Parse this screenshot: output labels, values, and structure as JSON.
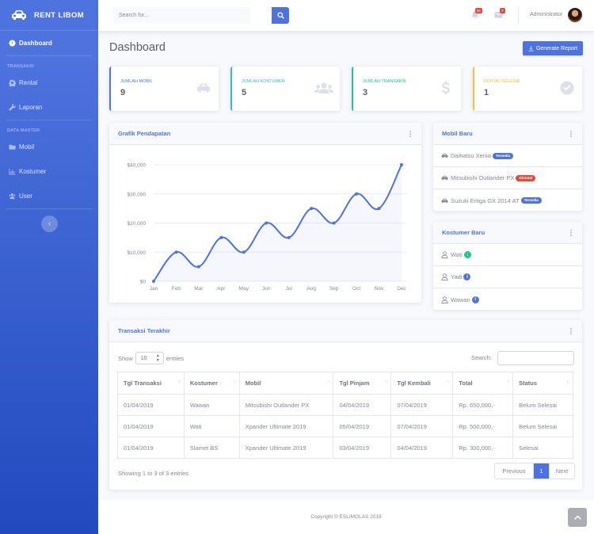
{
  "brand": {
    "name": "RENT LIBOM",
    "icon": "car-icon"
  },
  "sidebar": {
    "dashboard": "Dashboard",
    "heading_transaksi": "TRANSAKSI",
    "rental": "Rental",
    "laporan": "Laporan",
    "heading_master": "DATA MASTER",
    "mobil": "Mobil",
    "kostumer": "Kostumer",
    "user": "User",
    "toggle": "‹"
  },
  "topbar": {
    "search_placeholder": "Search for...",
    "alerts_count": "3+",
    "messages_count": "7",
    "username": "Administrator"
  },
  "page": {
    "title": "Dashboard",
    "generate_report": "Generate Report"
  },
  "stats": [
    {
      "label": "JUMLAH MOBIL",
      "value": "9",
      "color": "#4e73df",
      "icon": "car-icon"
    },
    {
      "label": "JUMLAH KOSTUMER",
      "value": "5",
      "color": "#36b9cc",
      "icon": "users-icon"
    },
    {
      "label": "JUMLAH TRANSAKSI",
      "value": "3",
      "color": "#1cc88a",
      "icon": "dollar-icon"
    },
    {
      "label": "RENTAL SELESAI",
      "value": "1",
      "color": "#f6c23e",
      "icon": "check-circle-icon"
    }
  ],
  "chart_card": {
    "title": "Grafik Pendapatan"
  },
  "chart_data": {
    "type": "line",
    "title": "Grafik Pendapatan",
    "categories": [
      "Jan",
      "Feb",
      "Mar",
      "Apr",
      "May",
      "Jun",
      "Jul",
      "Aug",
      "Sep",
      "Oct",
      "Nov",
      "Dec"
    ],
    "values": [
      0,
      10000,
      5000,
      15000,
      10000,
      20000,
      15000,
      25000,
      20000,
      30000,
      25000,
      40000
    ],
    "yticks": [
      "$0",
      "$10,000",
      "$20,000",
      "$30,000",
      "$40,000"
    ],
    "ylim": [
      0,
      40000
    ],
    "line_color": "#4e73df",
    "grid": true
  },
  "mobil_baru": {
    "title": "Mobil Baru",
    "items": [
      {
        "name": "Daihatsu Xenia",
        "status": "Tersedia",
        "status_color": "#4e73df"
      },
      {
        "name": "Mitsubishi Outlander PX",
        "status": "Dirental",
        "status_color": "#e74a3b"
      },
      {
        "name": "Suzuki Ertiga GX 2014 AT",
        "status": "Tersedia",
        "status_color": "#4e73df"
      }
    ]
  },
  "kostumer_baru": {
    "title": "Kostumer Baru",
    "items": [
      {
        "name": "Wati",
        "gender_icon": "female-icon",
        "color": "#1cc88a",
        "glyph": "↓"
      },
      {
        "name": "Yadi",
        "gender_icon": "male-icon",
        "color": "#4e73df",
        "glyph": "i"
      },
      {
        "name": "Wawan",
        "gender_icon": "male-icon",
        "color": "#4e73df",
        "glyph": "i"
      }
    ]
  },
  "transaksi": {
    "title": "Transaksi Terakhir",
    "show": "Show",
    "entries_value": "10",
    "entries": "entries",
    "search_label": "Search:",
    "columns": [
      "Tgl Transaksi",
      "Kostumer",
      "Mobil",
      "Tgl Pinjam",
      "Tgl Kembali",
      "Total",
      "Status"
    ],
    "rows": [
      [
        "01/04/2019",
        "Wawan",
        "Mitsubishi Outlander PX",
        "04/04/2019",
        "07/04/2019",
        "Rp. 650,000,-",
        "Belum Selesai"
      ],
      [
        "01/04/2019",
        "Wati",
        "Xpander Ultimate 2019",
        "05/04/2019",
        "07/04/2019",
        "Rp. 500,000,-",
        "Belum Selesai"
      ],
      [
        "01/04/2019",
        "Slamet BS",
        "Xpander Ultimate 2019",
        "03/04/2019",
        "04/04/2019",
        "Rp. 300,000,-",
        "Selesai"
      ]
    ],
    "info": "Showing 1 to 3 of 3 entries",
    "previous": "Previous",
    "page": "1",
    "next": "Next"
  },
  "footer": {
    "copyright": "Copyright © ESLIMOLAS 2019"
  }
}
